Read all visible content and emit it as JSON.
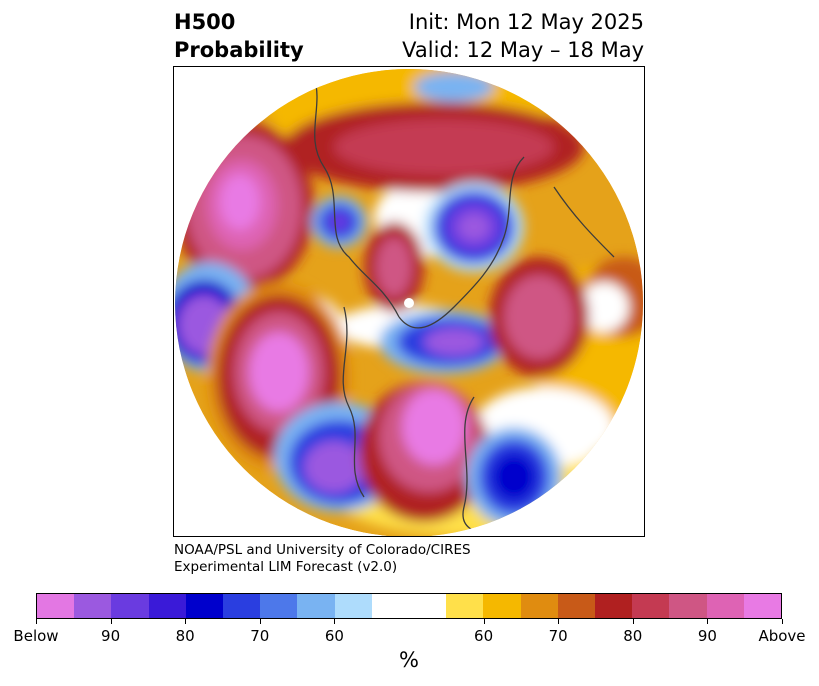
{
  "title": {
    "left_line1": "H500",
    "left_line2": "Probability",
    "right_line1": "Init: Mon 12 May 2025",
    "right_line2": "Valid: 12 May – 18 May"
  },
  "credit": {
    "line1": "NOAA/PSL and University of Colorado/CIRES",
    "line2": "Experimental LIM Forecast (v2.0)"
  },
  "colorbar": {
    "unit": "%",
    "colors": [
      "#e377e3",
      "#9b59e0",
      "#6a3be0",
      "#3a1ad8",
      "#0000cc",
      "#2a3ee0",
      "#4d78ea",
      "#79b3f2",
      "#aedcfc",
      "#ffffff",
      "#ffffff",
      "#ffe04a",
      "#f5b800",
      "#e08c10",
      "#c85a18",
      "#b02020",
      "#c43a52",
      "#cf5684",
      "#de63b4",
      "#e87ae4"
    ],
    "tick_labels": [
      {
        "label": "Below",
        "index": 0
      },
      {
        "label": "90",
        "index": 2
      },
      {
        "label": "80",
        "index": 4
      },
      {
        "label": "70",
        "index": 6
      },
      {
        "label": "60",
        "index": 8
      },
      {
        "label": "60",
        "index": 12
      },
      {
        "label": "70",
        "index": 14
      },
      {
        "label": "80",
        "index": 16
      },
      {
        "label": "90",
        "index": 18
      },
      {
        "label": "Above",
        "index": 20
      }
    ]
  },
  "map": {
    "projection": "polar-stereographic",
    "hemisphere": "northern"
  }
}
